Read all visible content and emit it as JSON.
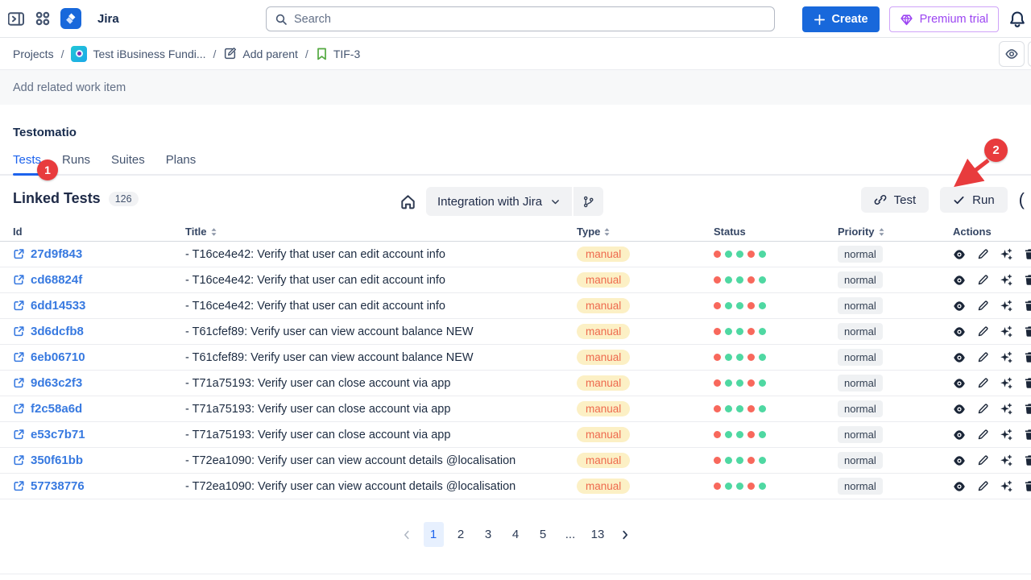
{
  "topbar": {
    "app_name": "Jira",
    "search_placeholder": "Search",
    "create_label": "Create",
    "premium_label": "Premium trial"
  },
  "breadcrumb": {
    "projects": "Projects",
    "project": "Test iBusiness Fundi...",
    "add_parent": "Add parent",
    "issue": "TIF-3",
    "separator": "/"
  },
  "panel": {
    "add_related_label": "Add related work item",
    "section_title": "Testomatio",
    "tabs": [
      {
        "label": "Tests",
        "active": true
      },
      {
        "label": "Runs",
        "active": false
      },
      {
        "label": "Suites",
        "active": false
      },
      {
        "label": "Plans",
        "active": false
      }
    ],
    "linked_tests_title": "Linked Tests",
    "linked_tests_count": "126",
    "branch_selector": "Integration with Jira",
    "test_button": "Test",
    "run_button": "Run",
    "partial_glyph": "("
  },
  "table": {
    "headers": [
      {
        "label": "Id",
        "sortable": false
      },
      {
        "label": "Title",
        "sortable": true
      },
      {
        "label": "Type",
        "sortable": true
      },
      {
        "label": "Status",
        "sortable": false
      },
      {
        "label": "Priority",
        "sortable": true
      },
      {
        "label": "Actions",
        "sortable": false
      }
    ],
    "rows": [
      {
        "id": "27d9f843",
        "title": "- T16ce4e42: Verify that user can edit account info",
        "type": "manual",
        "status": [
          "red",
          "green",
          "green",
          "red",
          "green"
        ],
        "priority": "normal"
      },
      {
        "id": "cd68824f",
        "title": "- T16ce4e42: Verify that user can edit account info",
        "type": "manual",
        "status": [
          "red",
          "green",
          "green",
          "red",
          "green"
        ],
        "priority": "normal"
      },
      {
        "id": "6dd14533",
        "title": "- T16ce4e42: Verify that user can edit account info",
        "type": "manual",
        "status": [
          "red",
          "green",
          "green",
          "red",
          "green"
        ],
        "priority": "normal"
      },
      {
        "id": "3d6dcfb8",
        "title": "- T61cfef89: Verify user can view account balance NEW",
        "type": "manual",
        "status": [
          "red",
          "green",
          "green",
          "red",
          "green"
        ],
        "priority": "normal"
      },
      {
        "id": "6eb06710",
        "title": "- T61cfef89: Verify user can view account balance NEW",
        "type": "manual",
        "status": [
          "red",
          "green",
          "green",
          "red",
          "green"
        ],
        "priority": "normal"
      },
      {
        "id": "9d63c2f3",
        "title": "- T71a75193: Verify user can close account via app",
        "type": "manual",
        "status": [
          "red",
          "green",
          "green",
          "red",
          "green"
        ],
        "priority": "normal"
      },
      {
        "id": "f2c58a6d",
        "title": "- T71a75193: Verify user can close account via app",
        "type": "manual",
        "status": [
          "red",
          "green",
          "green",
          "red",
          "green"
        ],
        "priority": "normal"
      },
      {
        "id": "e53c7b71",
        "title": "- T71a75193: Verify user can close account via app",
        "type": "manual",
        "status": [
          "red",
          "green",
          "green",
          "red",
          "green"
        ],
        "priority": "normal"
      },
      {
        "id": "350f61bb",
        "title": "- T72ea1090: Verify user can view account details @localisation",
        "type": "manual",
        "status": [
          "red",
          "green",
          "green",
          "red",
          "green"
        ],
        "priority": "normal"
      },
      {
        "id": "57738776",
        "title": "- T72ea1090: Verify user can view account details @localisation",
        "type": "manual",
        "status": [
          "red",
          "green",
          "green",
          "red",
          "green"
        ],
        "priority": "normal"
      }
    ]
  },
  "pagination": {
    "pages": [
      "1",
      "2",
      "3",
      "4",
      "5",
      "...",
      "13"
    ],
    "active": "1"
  },
  "annotations": {
    "badge1": "1",
    "badge2": "2"
  },
  "icons": {
    "row_actions": [
      "eye-icon",
      "pencil-icon",
      "sparkles-icon",
      "trash-icon"
    ]
  },
  "colors": {
    "brand_blue": "#1868db",
    "tab_active_blue": "#1d63ed",
    "link_blue": "#3779e0",
    "premium_purple": "#9c45f2",
    "status_red": "#f8685c",
    "status_green": "#4fd8a2",
    "manual_bg": "#fcf0c5",
    "manual_text": "#ee6a4e",
    "annotation_red": "#e83b3d"
  }
}
